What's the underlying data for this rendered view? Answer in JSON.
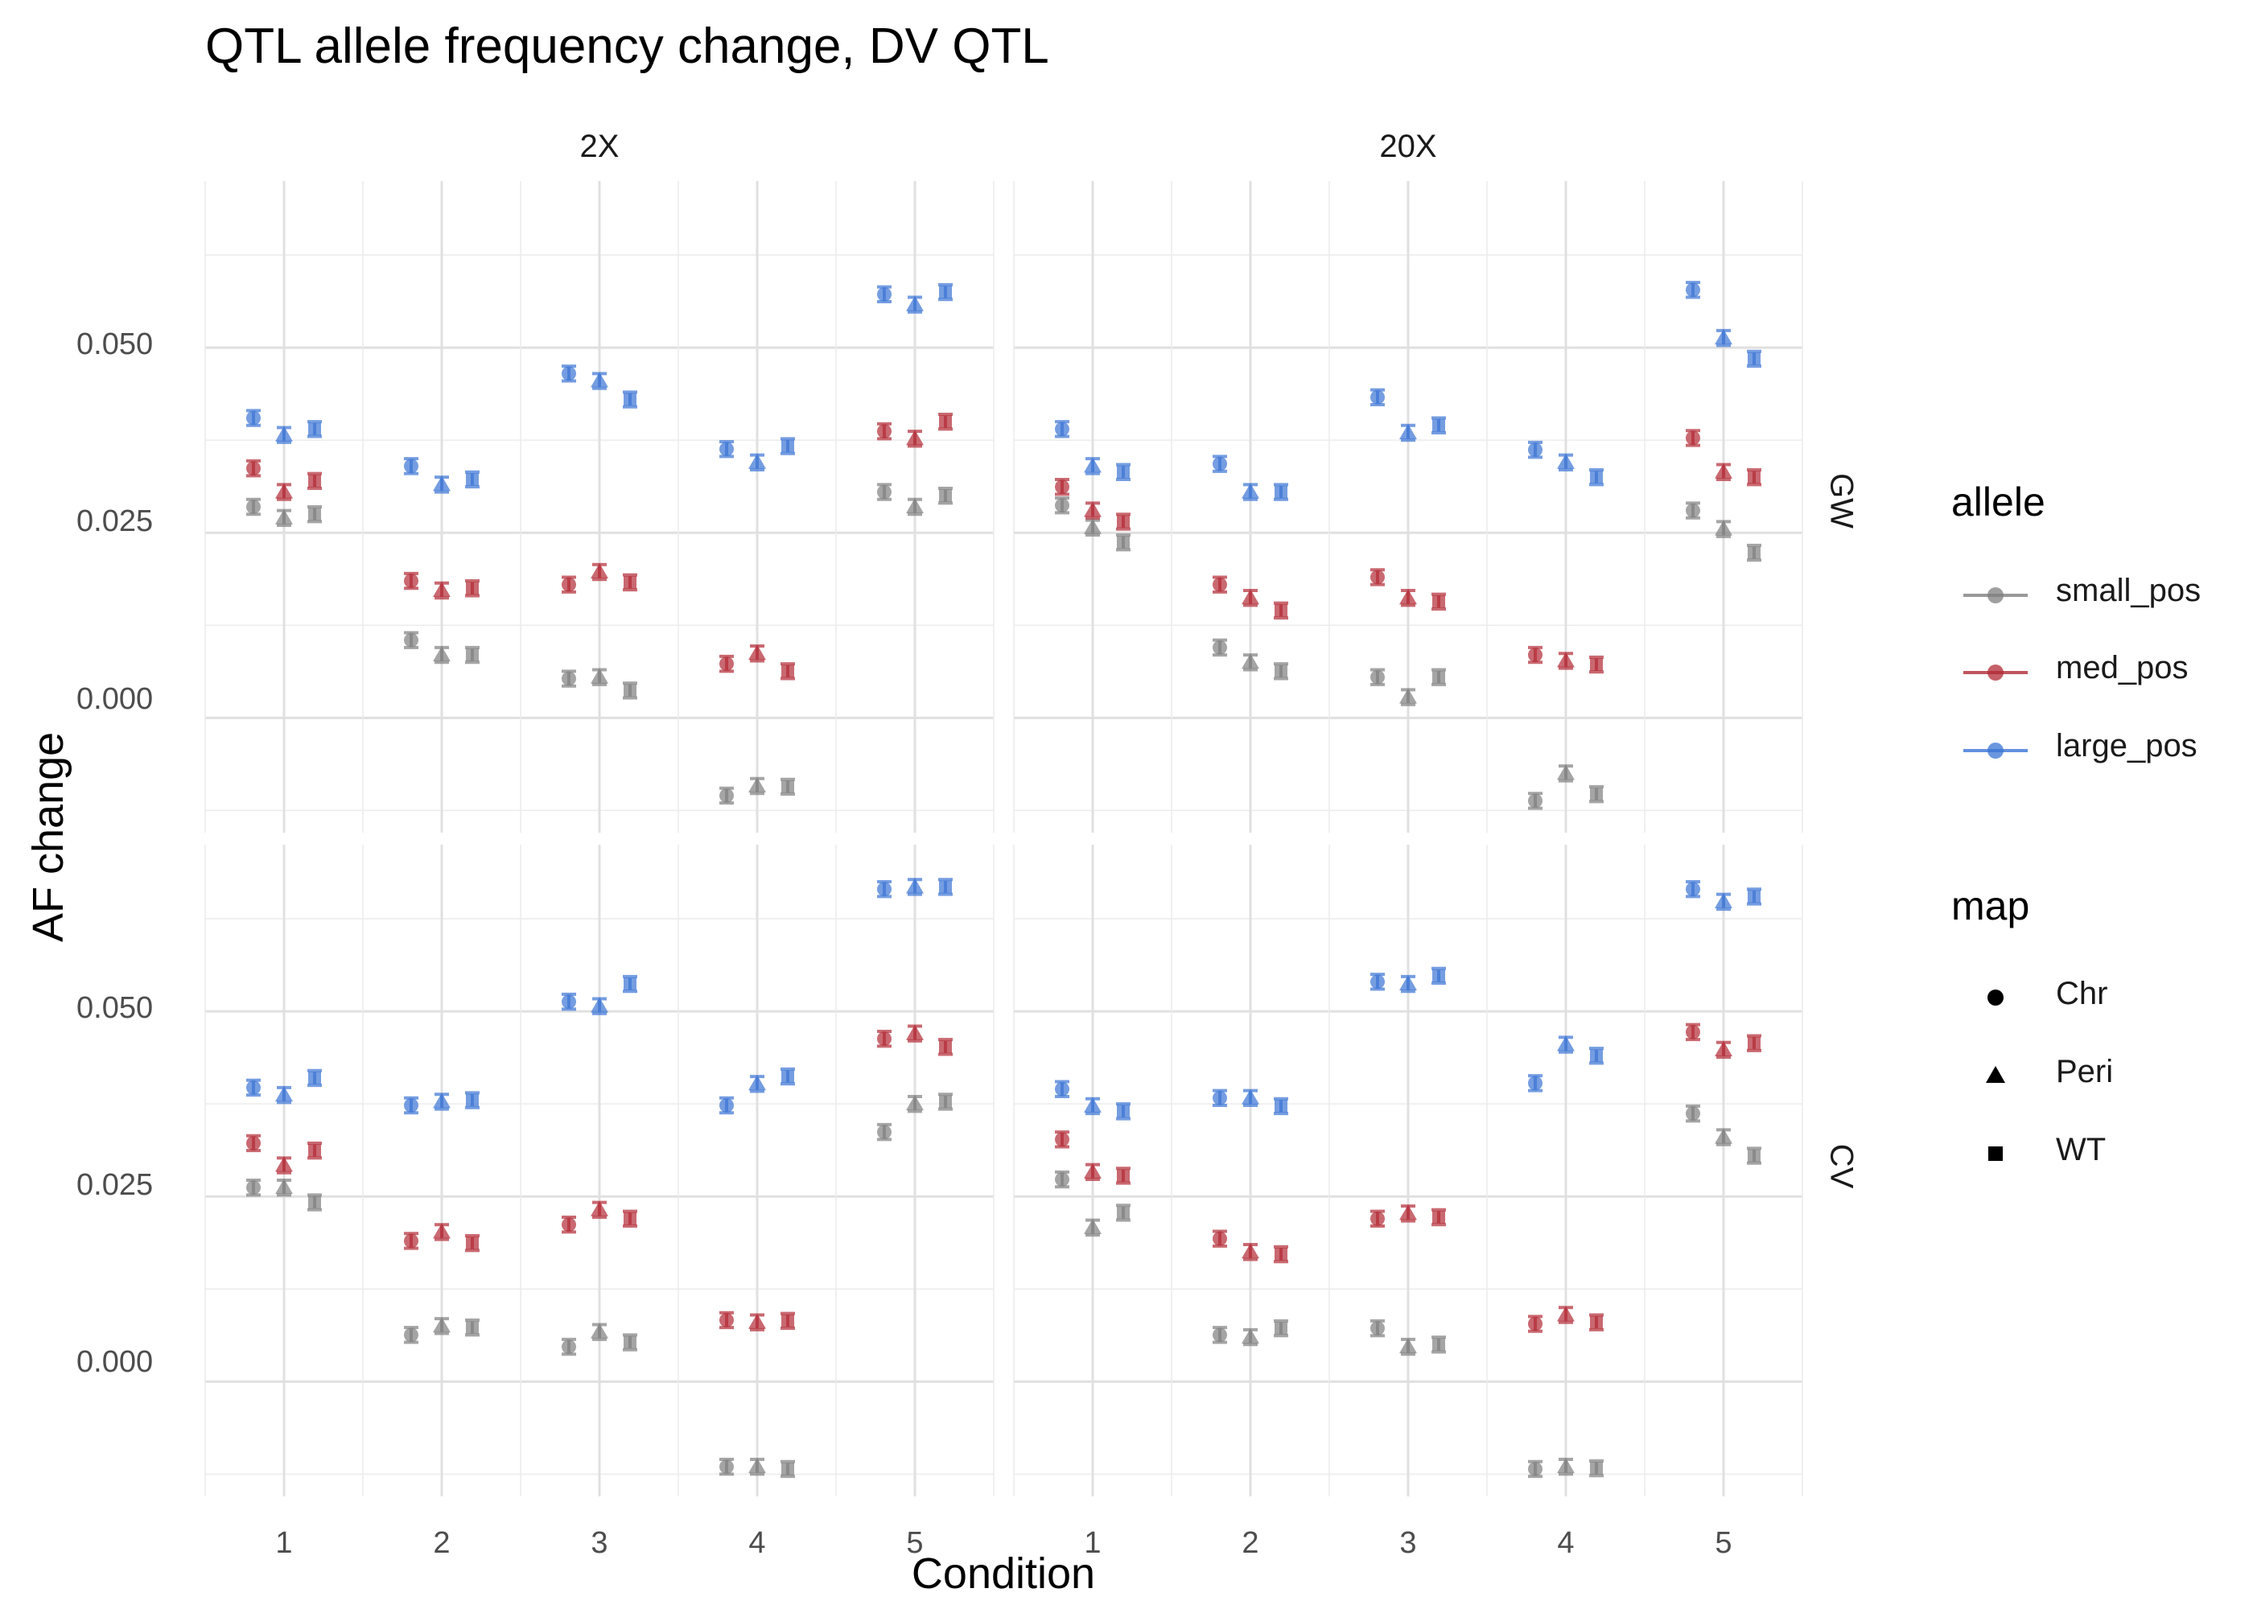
{
  "title": "QTL allele frequency change, DV QTL",
  "xlabel": "Condition",
  "ylabel": "AF change",
  "legend": {
    "allele_title": "allele",
    "allele_items": [
      {
        "label": "small_pos",
        "color": "#7f7f7f"
      },
      {
        "label": "med_pos",
        "color": "#b22a35"
      },
      {
        "label": "large_pos",
        "color": "#3a74d4"
      }
    ],
    "map_title": "map",
    "map_items": [
      {
        "label": "Chr",
        "shape": "circle"
      },
      {
        "label": "Peri",
        "shape": "triangle"
      },
      {
        "label": "WT",
        "shape": "square"
      }
    ]
  },
  "chart_data": {
    "type": "scatter",
    "subtype": "point-with-errorbars, faceted",
    "facet_columns": [
      "2X",
      "20X"
    ],
    "facet_rows": [
      "GW",
      "CV"
    ],
    "x_categories": [
      "1",
      "2",
      "3",
      "4",
      "5"
    ],
    "y_ticks": [
      "0.000",
      "0.025",
      "0.050"
    ],
    "ylim": [
      -0.0155,
      0.0725
    ],
    "grid": true,
    "legend_position": "right",
    "series_order_within_category": [
      "Chr",
      "Peri",
      "WT"
    ],
    "panels": [
      {
        "col": "2X",
        "row": "GW",
        "data": {
          "small_pos": [
            [
              0.0285,
              0.027,
              0.0275
            ],
            [
              0.0105,
              0.0085,
              0.0085
            ],
            [
              0.0053,
              0.0055,
              0.0037
            ],
            [
              -0.0105,
              -0.0092,
              -0.0093
            ],
            [
              0.0305,
              0.0285,
              0.03
            ]
          ],
          "med_pos": [
            [
              0.0337,
              0.0305,
              0.032
            ],
            [
              0.0185,
              0.0172,
              0.0175
            ],
            [
              0.018,
              0.0197,
              0.0183
            ],
            [
              0.0073,
              0.0087,
              0.0063
            ],
            [
              0.0387,
              0.0377,
              0.04
            ]
          ],
          "large_pos": [
            [
              0.0405,
              0.0382,
              0.039
            ],
            [
              0.034,
              0.0315,
              0.0322
            ],
            [
              0.0465,
              0.0455,
              0.043
            ],
            [
              0.0363,
              0.0345,
              0.0367
            ],
            [
              0.0572,
              0.0558,
              0.0575
            ]
          ]
        }
      },
      {
        "col": "20X",
        "row": "GW",
        "data": {
          "small_pos": [
            [
              0.0287,
              0.0257,
              0.0237
            ],
            [
              0.0095,
              0.0075,
              0.0063
            ],
            [
              0.0055,
              0.0028,
              0.0055
            ],
            [
              -0.0112,
              -0.0075,
              -0.0103
            ],
            [
              0.028,
              0.0255,
              0.0223
            ]
          ],
          "med_pos": [
            [
              0.0312,
              0.028,
              0.0265
            ],
            [
              0.018,
              0.0162,
              0.0145
            ],
            [
              0.019,
              0.0162,
              0.0157
            ],
            [
              0.0085,
              0.0077,
              0.0072
            ],
            [
              0.0378,
              0.0332,
              0.0325
            ]
          ],
          "large_pos": [
            [
              0.039,
              0.034,
              0.0332
            ],
            [
              0.0343,
              0.0305,
              0.0305
            ],
            [
              0.0433,
              0.0385,
              0.0395
            ],
            [
              0.0362,
              0.0345,
              0.0325
            ],
            [
              0.0578,
              0.0513,
              0.0485
            ]
          ]
        }
      },
      {
        "col": "2X",
        "row": "CV",
        "data": {
          "small_pos": [
            [
              0.0262,
              0.0262,
              0.0242
            ],
            [
              0.0063,
              0.0075,
              0.0073
            ],
            [
              0.0047,
              0.0067,
              0.0053
            ],
            [
              -0.0115,
              -0.0115,
              -0.0118
            ],
            [
              0.0337,
              0.0375,
              0.0378
            ]
          ],
          "med_pos": [
            [
              0.0322,
              0.0292,
              0.0312
            ],
            [
              0.019,
              0.0202,
              0.0187
            ],
            [
              0.0212,
              0.0232,
              0.022
            ],
            [
              0.0083,
              0.008,
              0.0082
            ],
            [
              0.0463,
              0.047,
              0.0452
            ]
          ],
          "large_pos": [
            [
              0.0397,
              0.0387,
              0.041
            ],
            [
              0.0373,
              0.0378,
              0.038
            ],
            [
              0.0513,
              0.0507,
              0.0537
            ],
            [
              0.0373,
              0.0402,
              0.0412
            ],
            [
              0.0665,
              0.0668,
              0.0668
            ]
          ]
        }
      },
      {
        "col": "20X",
        "row": "CV",
        "data": {
          "small_pos": [
            [
              0.0273,
              0.0208,
              0.0228
            ],
            [
              0.0063,
              0.006,
              0.0072
            ],
            [
              0.0072,
              0.0047,
              0.005
            ],
            [
              -0.0118,
              -0.0115,
              -0.0117
            ],
            [
              0.0362,
              0.033,
              0.0305
            ]
          ],
          "med_pos": [
            [
              0.0327,
              0.0283,
              0.0278
            ],
            [
              0.0193,
              0.0175,
              0.0172
            ],
            [
              0.022,
              0.0227,
              0.0222
            ],
            [
              0.0078,
              0.009,
              0.008
            ],
            [
              0.0472,
              0.0448,
              0.0457
            ]
          ],
          "large_pos": [
            [
              0.0395,
              0.0372,
              0.0365
            ],
            [
              0.0383,
              0.0383,
              0.0372
            ],
            [
              0.054,
              0.0537,
              0.0548
            ],
            [
              0.0403,
              0.0455,
              0.044
            ],
            [
              0.0665,
              0.0648,
              0.0655
            ]
          ]
        }
      }
    ]
  }
}
